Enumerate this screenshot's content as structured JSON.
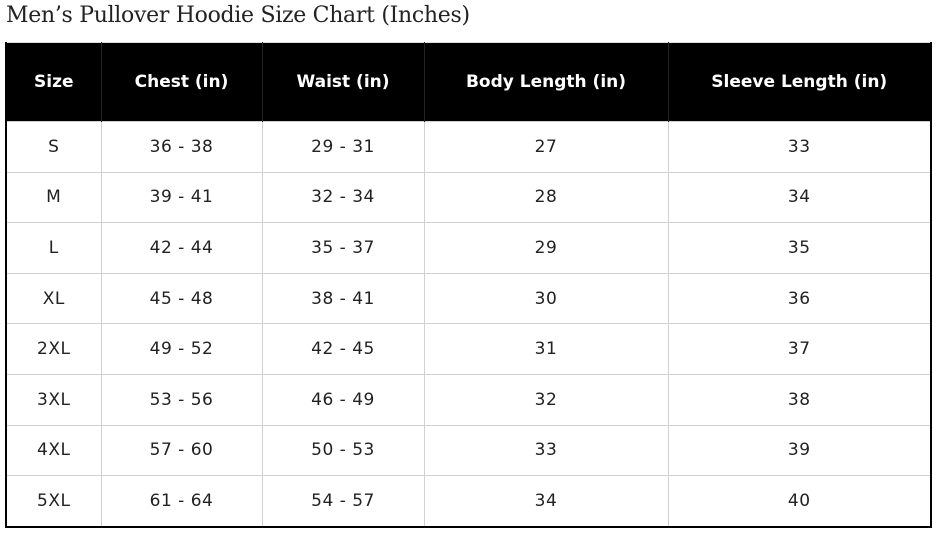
{
  "title": "Men’s Pullover Hoodie Size Chart (Inches)",
  "table": {
    "headers": [
      "Size",
      "Chest (in)",
      "Waist (in)",
      "Body Length (in)",
      "Sleeve Length (in)"
    ],
    "rows": [
      [
        "S",
        "36 - 38",
        "29 - 31",
        "27",
        "33"
      ],
      [
        "M",
        "39 - 41",
        "32 - 34",
        "28",
        "34"
      ],
      [
        "L",
        "42 - 44",
        "35 - 37",
        "29",
        "35"
      ],
      [
        "XL",
        "45 - 48",
        "38 - 41",
        "30",
        "36"
      ],
      [
        "2XL",
        "49 - 52",
        "42 - 45",
        "31",
        "37"
      ],
      [
        "3XL",
        "53 - 56",
        "46 - 49",
        "32",
        "38"
      ],
      [
        "4XL",
        "57 - 60",
        "50 - 53",
        "33",
        "39"
      ],
      [
        "5XL",
        "61 - 64",
        "54 - 57",
        "34",
        "40"
      ]
    ]
  }
}
